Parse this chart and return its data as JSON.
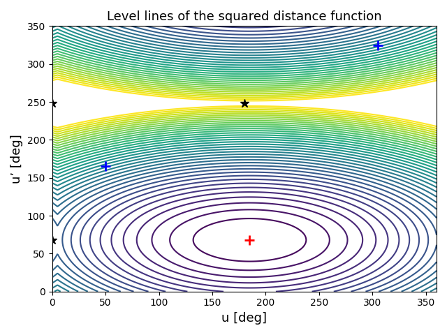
{
  "title": "Level lines of the squared distance function",
  "xlabel": "u [deg]",
  "ylabel": "u’ [deg]",
  "xlim": [
    0,
    360
  ],
  "ylim": [
    0,
    350
  ],
  "xticks": [
    0,
    50,
    100,
    150,
    200,
    250,
    300,
    350
  ],
  "yticks": [
    0,
    50,
    100,
    150,
    200,
    250,
    300,
    350
  ],
  "min_point": [
    185,
    68
  ],
  "blue_plus_points": [
    [
      50,
      165
    ],
    [
      305,
      325
    ]
  ],
  "black_star_points": [
    [
      0,
      248
    ],
    [
      0,
      68
    ],
    [
      180,
      248
    ]
  ],
  "n_levels": 40,
  "colormap": "viridis",
  "weight_u": 1.0,
  "weight_v": 3.5
}
